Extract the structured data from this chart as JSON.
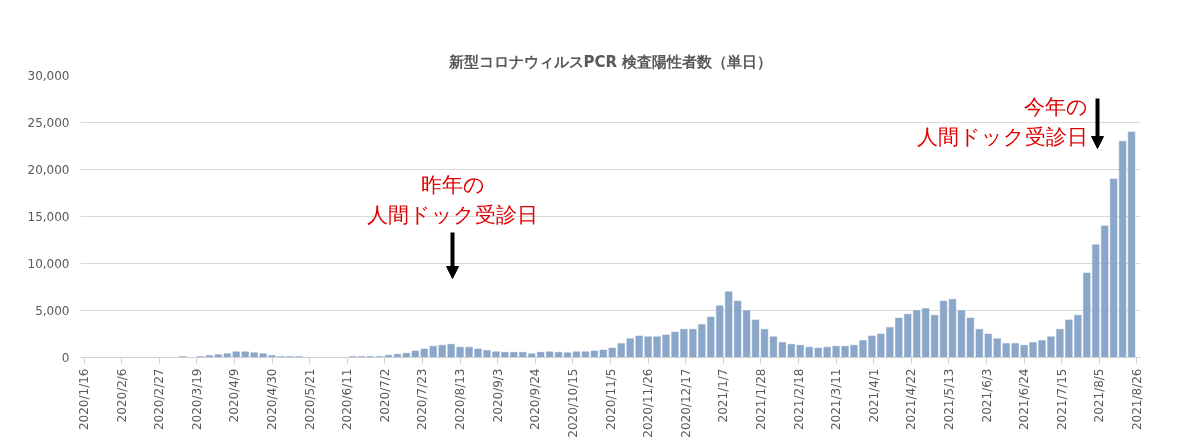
{
  "chart_data": {
    "type": "bar",
    "title": "新型コロナウィルスPCR 検査陽性者数（単日）",
    "x": [
      "2020-01-16",
      "2020-01-21",
      "2020-01-26",
      "2020-01-31",
      "2020-02-05",
      "2020-02-10",
      "2020-02-15",
      "2020-02-20",
      "2020-02-25",
      "2020-03-01",
      "2020-03-06",
      "2020-03-11",
      "2020-03-16",
      "2020-03-21",
      "2020-03-26",
      "2020-03-31",
      "2020-04-05",
      "2020-04-10",
      "2020-04-15",
      "2020-04-20",
      "2020-04-25",
      "2020-04-30",
      "2020-05-05",
      "2020-05-10",
      "2020-05-15",
      "2020-05-20",
      "2020-05-25",
      "2020-05-30",
      "2020-06-04",
      "2020-06-09",
      "2020-06-14",
      "2020-06-19",
      "2020-06-24",
      "2020-06-29",
      "2020-07-04",
      "2020-07-09",
      "2020-07-14",
      "2020-07-19",
      "2020-07-24",
      "2020-07-29",
      "2020-08-03",
      "2020-08-08",
      "2020-08-13",
      "2020-08-18",
      "2020-08-23",
      "2020-08-28",
      "2020-09-02",
      "2020-09-07",
      "2020-09-12",
      "2020-09-17",
      "2020-09-22",
      "2020-09-27",
      "2020-10-02",
      "2020-10-07",
      "2020-10-12",
      "2020-10-17",
      "2020-10-22",
      "2020-10-27",
      "2020-11-01",
      "2020-11-06",
      "2020-11-11",
      "2020-11-16",
      "2020-11-21",
      "2020-11-26",
      "2020-12-01",
      "2020-12-06",
      "2020-12-11",
      "2020-12-16",
      "2020-12-21",
      "2020-12-26",
      "2020-12-31",
      "2021-01-05",
      "2021-01-10",
      "2021-01-15",
      "2021-01-20",
      "2021-01-25",
      "2021-01-30",
      "2021-02-04",
      "2021-02-09",
      "2021-02-14",
      "2021-02-19",
      "2021-02-24",
      "2021-03-01",
      "2021-03-06",
      "2021-03-11",
      "2021-03-16",
      "2021-03-21",
      "2021-03-26",
      "2021-03-31",
      "2021-04-05",
      "2021-04-10",
      "2021-04-15",
      "2021-04-20",
      "2021-04-25",
      "2021-04-30",
      "2021-05-05",
      "2021-05-10",
      "2021-05-15",
      "2021-05-20",
      "2021-05-25",
      "2021-05-30",
      "2021-06-04",
      "2021-06-09",
      "2021-06-14",
      "2021-06-19",
      "2021-06-24",
      "2021-06-29",
      "2021-07-04",
      "2021-07-09",
      "2021-07-14",
      "2021-07-19",
      "2021-07-24",
      "2021-07-29",
      "2021-08-03",
      "2021-08-08",
      "2021-08-13",
      "2021-08-18",
      "2021-08-23"
    ],
    "values": [
      0,
      0,
      0,
      0,
      0,
      0,
      0,
      0,
      0,
      0,
      0,
      100,
      0,
      100,
      200,
      300,
      400,
      600,
      600,
      500,
      400,
      200,
      100,
      100,
      100,
      0,
      0,
      0,
      0,
      0,
      100,
      100,
      100,
      100,
      250,
      350,
      450,
      700,
      900,
      1200,
      1300,
      1400,
      1100,
      1100,
      900,
      750,
      600,
      550,
      550,
      550,
      400,
      550,
      600,
      550,
      500,
      600,
      600,
      700,
      800,
      1000,
      1500,
      2000,
      2300,
      2200,
      2200,
      2400,
      2700,
      3000,
      3000,
      3500,
      4300,
      5500,
      7000,
      6000,
      5000,
      4000,
      3000,
      2200,
      1600,
      1400,
      1300,
      1100,
      1000,
      1100,
      1200,
      1200,
      1300,
      1800,
      2300,
      2500,
      3200,
      4200,
      4600,
      5000,
      5200,
      4500,
      6000,
      6200,
      5000,
      4200,
      3000,
      2500,
      2000,
      1500,
      1500,
      1300,
      1600,
      1800,
      2200,
      3000,
      4000,
      4500,
      9000,
      12000,
      14000,
      19000,
      23000,
      24000
    ],
    "color": "#8aa6c8",
    "xlim": [
      "2020-01-14",
      "2021-08-28"
    ],
    "xticks": [
      {
        "value": "2020-01-16",
        "label": "2020/1/16"
      },
      {
        "value": "2020-02-06",
        "label": "2020/2/6"
      },
      {
        "value": "2020-02-27",
        "label": "2020/2/27"
      },
      {
        "value": "2020-03-19",
        "label": "2020/3/19"
      },
      {
        "value": "2020-04-09",
        "label": "2020/4/9"
      },
      {
        "value": "2020-04-30",
        "label": "2020/4/30"
      },
      {
        "value": "2020-05-21",
        "label": "2020/5/21"
      },
      {
        "value": "2020-06-11",
        "label": "2020/6/11"
      },
      {
        "value": "2020-07-02",
        "label": "2020/7/2"
      },
      {
        "value": "2020-07-23",
        "label": "2020/7/23"
      },
      {
        "value": "2020-08-13",
        "label": "2020/8/13"
      },
      {
        "value": "2020-09-03",
        "label": "2020/9/3"
      },
      {
        "value": "2020-09-24",
        "label": "2020/9/24"
      },
      {
        "value": "2020-10-15",
        "label": "2020/10/15"
      },
      {
        "value": "2020-11-05",
        "label": "2020/11/5"
      },
      {
        "value": "2020-11-26",
        "label": "2020/11/26"
      },
      {
        "value": "2020-12-17",
        "label": "2020/12/17"
      },
      {
        "value": "2021-01-07",
        "label": "2021/1/7"
      },
      {
        "value": "2021-01-28",
        "label": "2021/1/28"
      },
      {
        "value": "2021-02-18",
        "label": "2021/2/18"
      },
      {
        "value": "2021-03-11",
        "label": "2021/3/11"
      },
      {
        "value": "2021-04-01",
        "label": "2021/4/1"
      },
      {
        "value": "2021-04-22",
        "label": "2021/4/22"
      },
      {
        "value": "2021-05-13",
        "label": "2021/5/13"
      },
      {
        "value": "2021-06-03",
        "label": "2021/6/3"
      },
      {
        "value": "2021-06-24",
        "label": "2021/6/24"
      },
      {
        "value": "2021-07-15",
        "label": "2021/7/15"
      },
      {
        "value": "2021-08-05",
        "label": "2021/8/5"
      },
      {
        "value": "2021-08-26",
        "label": "2021/8/26"
      }
    ],
    "ylim": [
      0,
      30000
    ],
    "yticks": [
      {
        "value": 0,
        "label": "0"
      },
      {
        "value": 5000,
        "label": "5,000"
      },
      {
        "value": 10000,
        "label": "10,000"
      },
      {
        "value": 15000,
        "label": "15,000"
      },
      {
        "value": 20000,
        "label": "20,000"
      },
      {
        "value": 25000,
        "label": "25,000"
      },
      {
        "value": 30000,
        "label": "30,000"
      }
    ],
    "grid": "y",
    "annotations": [
      "昨年の",
      "人間ドック受診日",
      "今年の",
      "人間ドック受診日"
    ]
  }
}
